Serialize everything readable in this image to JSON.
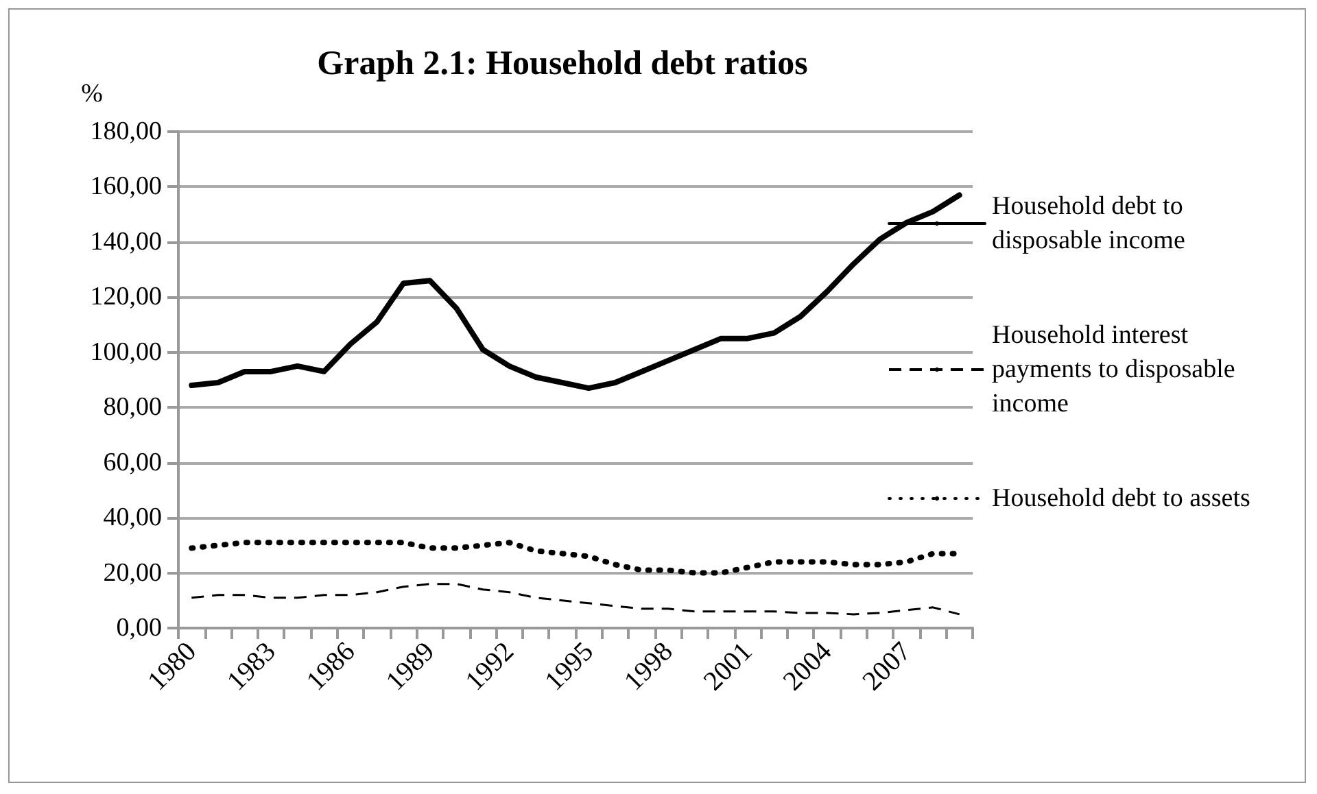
{
  "chart_data": {
    "type": "line",
    "title": "Graph 2.1: Household debt ratios",
    "ylabel": "%",
    "categories": [
      "1980",
      null,
      null,
      "1983",
      null,
      null,
      "1986",
      null,
      null,
      "1989",
      null,
      null,
      "1992",
      null,
      null,
      "1995",
      null,
      null,
      "1998",
      null,
      null,
      "2001",
      null,
      null,
      "2004",
      null,
      null,
      "2007",
      null,
      null
    ],
    "series": [
      {
        "name": "Household debt to disposable income",
        "color": "#000000",
        "line_style": "solid",
        "values": [
          88,
          89,
          93,
          93,
          95,
          93,
          103,
          111,
          125,
          126,
          116,
          101,
          95,
          91,
          89,
          87,
          89,
          93,
          97,
          101,
          105,
          105,
          107,
          113,
          122,
          132,
          141,
          147,
          151,
          157
        ]
      },
      {
        "name": "Household interest payments to disposable income",
        "color": "#000000",
        "line_style": "dashed",
        "values": [
          11,
          12,
          12,
          11,
          11,
          12,
          12,
          13,
          15,
          16,
          16,
          14,
          13,
          11,
          10,
          9,
          8,
          7,
          7,
          6,
          6,
          6,
          6,
          5.5,
          5.5,
          5,
          5.5,
          6.5,
          7.5,
          5
        ]
      },
      {
        "name": "Household debt to assets",
        "color": "#000000",
        "line_style": "dotted",
        "values": [
          29,
          30,
          31,
          31,
          31,
          31,
          31,
          31,
          31,
          29,
          29,
          30,
          31,
          28,
          27,
          26,
          23,
          21,
          21,
          20,
          20,
          22,
          24,
          24,
          24,
          23,
          23,
          24,
          27,
          27
        ]
      }
    ],
    "ylim": [
      0,
      180
    ],
    "yticks": [
      {
        "value": 0,
        "label": "0,00"
      },
      {
        "value": 20,
        "label": "20,00"
      },
      {
        "value": 40,
        "label": "40,00"
      },
      {
        "value": 60,
        "label": "60,00"
      },
      {
        "value": 80,
        "label": "80,00"
      },
      {
        "value": 100,
        "label": "100,00"
      },
      {
        "value": 120,
        "label": "120,00"
      },
      {
        "value": 140,
        "label": "140,00"
      },
      {
        "value": 160,
        "label": "160,00"
      },
      {
        "value": 180,
        "label": "180,00"
      }
    ],
    "grid": "y",
    "legend": "right",
    "marker": "none"
  }
}
